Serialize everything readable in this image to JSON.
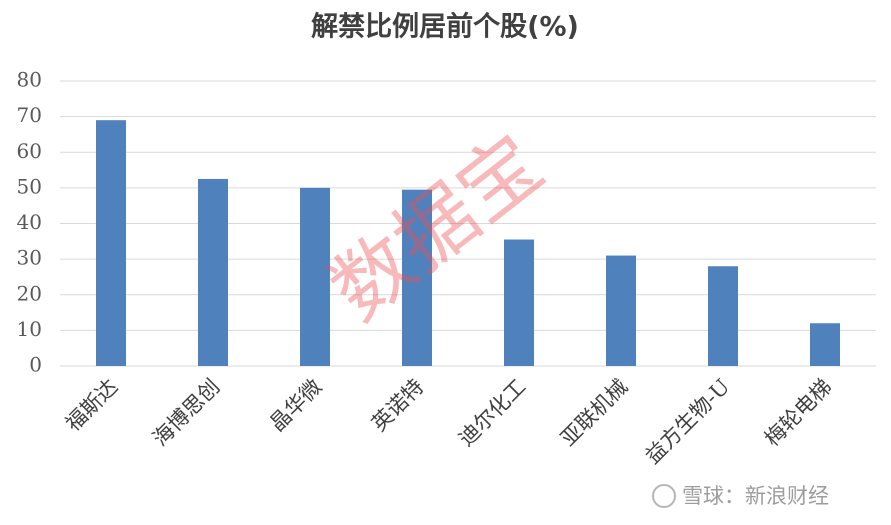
{
  "chart_data": {
    "type": "bar",
    "title": "解禁比例居前个股(%)",
    "categories": [
      "福斯达",
      "海博思创",
      "晶华微",
      "英诺特",
      "迪尔化工",
      "亚联机械",
      "益方生物-U",
      "梅轮电梯"
    ],
    "values": [
      69,
      52.5,
      50,
      49.5,
      35.5,
      31,
      28,
      12
    ],
    "color": "#4f81bd",
    "ylim": [
      0,
      80
    ],
    "yticks": [
      0,
      10,
      20,
      30,
      40,
      50,
      60,
      70,
      80
    ],
    "grid": true
  },
  "watermark": "数据宝",
  "source_mark": "雪球：新浪财经"
}
